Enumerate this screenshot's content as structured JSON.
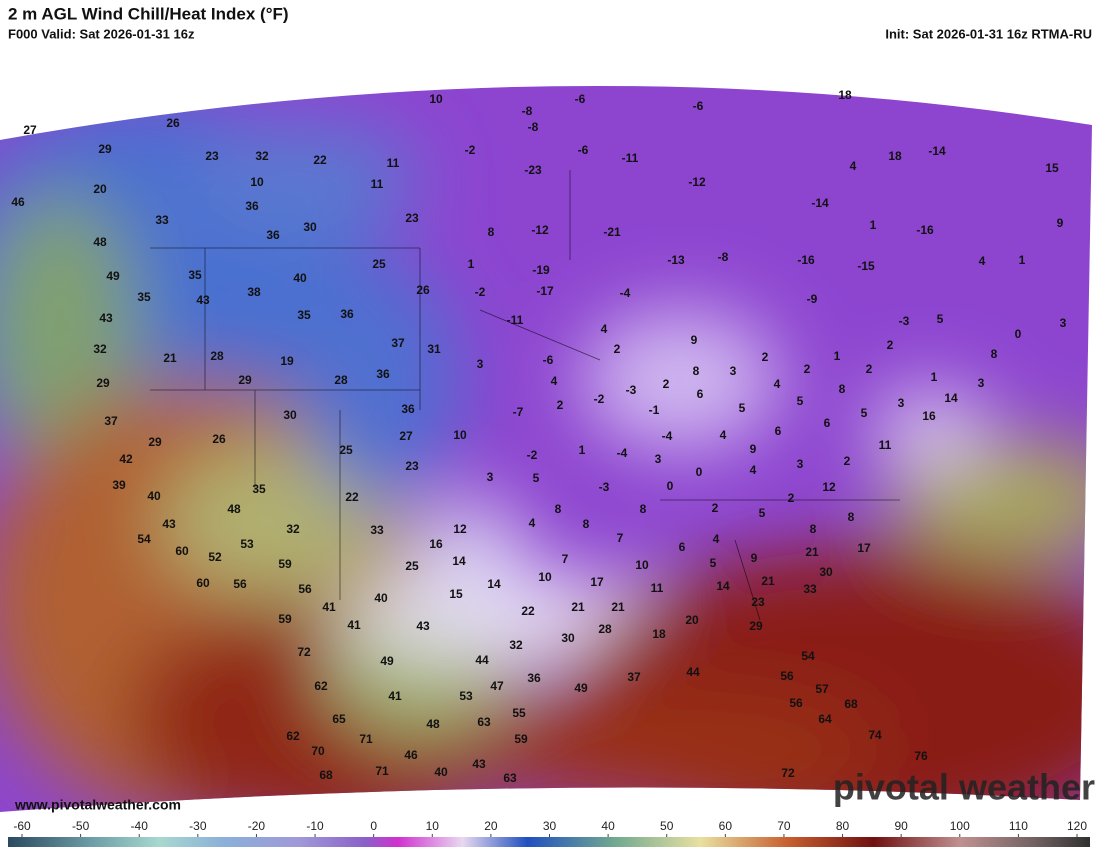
{
  "header": {
    "title": "2 m AGL Wind Chill/Heat Index (°F)",
    "valid": "F000 Valid: Sat 2026-01-31 16z",
    "init": "Init: Sat 2026-01-31 16z RTMA-RU"
  },
  "map_labels": [
    27,
    26,
    29,
    23,
    32,
    22,
    20,
    10,
    11,
    11,
    36,
    33,
    36,
    30,
    23,
    10,
    -8,
    -6,
    -6,
    18,
    -8,
    -2,
    -6,
    -11,
    18,
    -14,
    4,
    15,
    -23,
    -12,
    -14,
    1,
    -16,
    9,
    8,
    -12,
    -21,
    46,
    48,
    49,
    35,
    40,
    25,
    1,
    -19,
    -13,
    -8,
    -16,
    -15,
    4,
    1,
    35,
    43,
    38,
    26,
    -2,
    -17,
    -4,
    -9,
    43,
    35,
    36,
    -11,
    4,
    9,
    -3,
    5,
    0,
    3,
    32,
    21,
    28,
    19,
    37,
    31,
    2,
    2,
    1,
    2,
    8,
    28,
    36,
    3,
    -6,
    8,
    3,
    2,
    2,
    1,
    3,
    29,
    29,
    4,
    2,
    -3,
    6,
    4,
    8,
    14,
    2,
    -2,
    -1,
    5,
    5,
    3,
    16,
    30,
    36,
    -7,
    6,
    5,
    37,
    29,
    26,
    27,
    10,
    -4,
    4,
    6,
    11,
    25,
    1,
    -4,
    9,
    2,
    42,
    23,
    -2,
    3,
    4,
    3,
    39,
    3,
    5,
    0,
    -3,
    0,
    2,
    12,
    35,
    22,
    40,
    48,
    8,
    8,
    2,
    5,
    8,
    43,
    32,
    33,
    12,
    4,
    8,
    8,
    54,
    53,
    16,
    7,
    6,
    4,
    60,
    52,
    17,
    21,
    9,
    14,
    7,
    5,
    59,
    25,
    10,
    60,
    56,
    56,
    14,
    10,
    17,
    30,
    11,
    14,
    21,
    33,
    15,
    40,
    41,
    21,
    21,
    22,
    23,
    59,
    41,
    43,
    30,
    28,
    18,
    20,
    29,
    32,
    72,
    44,
    49,
    54,
    62,
    36,
    49,
    37,
    44,
    56,
    47,
    41,
    53,
    57,
    56,
    68,
    55,
    63,
    48,
    65,
    64,
    59,
    62,
    71,
    74,
    76,
    70,
    46,
    43,
    68,
    71,
    40,
    63,
    72
  ],
  "colorbar": {
    "ticks": [
      -60,
      -50,
      -40,
      -30,
      -20,
      -10,
      0,
      10,
      20,
      30,
      40,
      50,
      60,
      70,
      80,
      90,
      100,
      110,
      120
    ]
  },
  "watermark": {
    "url": "www.pivotalweather.com",
    "brand": "pivotal weather"
  }
}
